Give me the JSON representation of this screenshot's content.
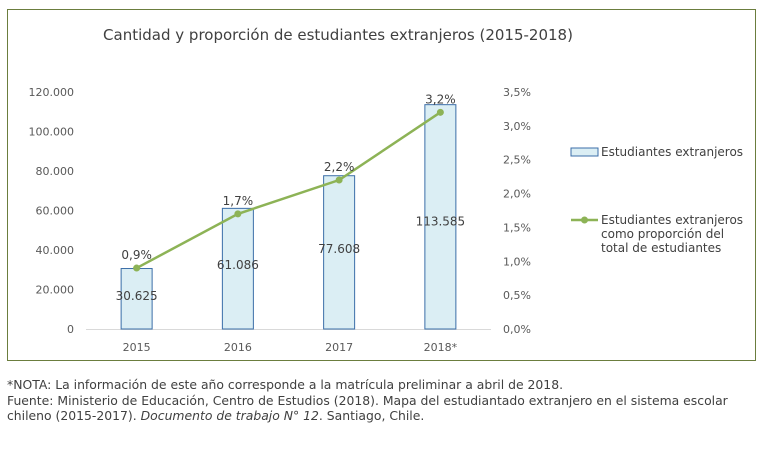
{
  "chart_data": {
    "type": "bar",
    "title": "Cantidad y proporción de estudiantes extranjeros (2015-2018)",
    "categories": [
      "2015",
      "2016",
      "2017",
      "2018*"
    ],
    "series": [
      {
        "name": "Estudiantes extranjeros",
        "type": "bar",
        "axis": "left",
        "values": [
          30625,
          61086,
          77608,
          113585
        ],
        "labels": [
          "30.625",
          "61.086",
          "77.608",
          "113.585"
        ],
        "color": "#dbeef4",
        "stroke": "#3b6ea8"
      },
      {
        "name": "Estudiantes extranjeros como proporción del total de estudiantes",
        "legend_lines": [
          "Estudiantes extranjeros",
          "como proporción del",
          "total de estudiantes"
        ],
        "type": "line",
        "axis": "right",
        "values": [
          0.9,
          1.7,
          2.2,
          3.2
        ],
        "labels": [
          "0,9%",
          "1,7%",
          "2,2%",
          "3,2%"
        ],
        "color": "#8db356"
      }
    ],
    "y_left": {
      "ylim": [
        0,
        120000
      ],
      "ticks": [
        0,
        20000,
        40000,
        60000,
        80000,
        100000,
        120000
      ],
      "tick_labels": [
        "0",
        "20.000",
        "40.000",
        "60.000",
        "80.000",
        "100.000",
        "120.000"
      ]
    },
    "y_right": {
      "ylim": [
        0,
        3.5
      ],
      "ticks": [
        0,
        0.5,
        1.0,
        1.5,
        2.0,
        2.5,
        3.0,
        3.5
      ],
      "tick_labels": [
        "0,0%",
        "0,5%",
        "1,0%",
        "1,5%",
        "2,0%",
        "2,5%",
        "3,0%",
        "3,5%"
      ]
    },
    "grid": false,
    "legend_position": "right"
  },
  "notes": {
    "nota": "*NOTA: La información de este año corresponde a la matrícula preliminar a abril de 2018.",
    "fuente_prefix": "Fuente: Ministerio de Educación, Centro de Estudios (2018). Mapa del estudiantado extranjero en el sistema escolar chileno (2015-2017). ",
    "fuente_italic": "Documento de trabajo N° 12",
    "fuente_suffix": ". Santiago, Chile."
  }
}
